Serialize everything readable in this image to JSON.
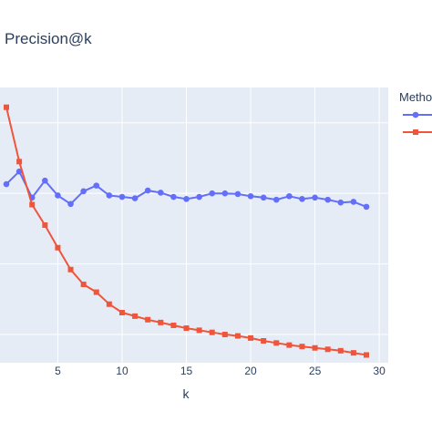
{
  "chart_data": {
    "type": "line",
    "title": "Precision@k",
    "xlabel": "k",
    "ylabel": "",
    "xlim": [
      1,
      30
    ],
    "ylim": [
      0.06,
      0.45
    ],
    "xticks": [
      5,
      10,
      15,
      20,
      25,
      30
    ],
    "grid": true,
    "legend": {
      "title": "Metho",
      "position": "right"
    },
    "x": [
      1,
      2,
      3,
      4,
      5,
      6,
      7,
      8,
      9,
      10,
      11,
      12,
      13,
      14,
      15,
      16,
      17,
      18,
      19,
      20,
      21,
      22,
      23,
      24,
      25,
      26,
      27,
      28,
      29
    ],
    "series": [
      {
        "color": "#636efa",
        "marker": "circle",
        "values": [
          0.313,
          0.331,
          0.294,
          0.318,
          0.297,
          0.285,
          0.303,
          0.311,
          0.297,
          0.295,
          0.293,
          0.304,
          0.301,
          0.295,
          0.292,
          0.295,
          0.3,
          0.3,
          0.299,
          0.296,
          0.294,
          0.291,
          0.296,
          0.292,
          0.294,
          0.291,
          0.287,
          0.288,
          0.281
        ]
      },
      {
        "color": "#ef553b",
        "marker": "square",
        "values": [
          0.422,
          0.345,
          0.284,
          0.255,
          0.223,
          0.192,
          0.171,
          0.16,
          0.143,
          0.131,
          0.126,
          0.121,
          0.117,
          0.113,
          0.109,
          0.106,
          0.103,
          0.1,
          0.098,
          0.095,
          0.091,
          0.088,
          0.085,
          0.083,
          0.081,
          0.079,
          0.077,
          0.074,
          0.071
        ]
      }
    ]
  }
}
